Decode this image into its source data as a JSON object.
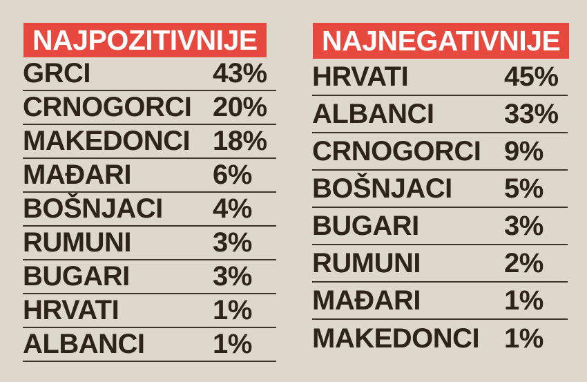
{
  "colors": {
    "background": "#ded7cc",
    "accent_red": "#e8493e",
    "text": "#2d2316",
    "separator_line": "#3c332b",
    "header_text": "#ffffff"
  },
  "columns": [
    {
      "header": "NAJPOZITIVNIJE",
      "rows": [
        {
          "label": "GRCI",
          "value": "43%"
        },
        {
          "label": "CRNOGORCI",
          "value": "20%"
        },
        {
          "label": "MAKEDONCI",
          "value": "18%"
        },
        {
          "label": "MAĐARI",
          "value": "6%"
        },
        {
          "label": "BOŠNJACI",
          "value": "4%"
        },
        {
          "label": "RUMUNI",
          "value": "3%"
        },
        {
          "label": "BUGARI",
          "value": "3%"
        },
        {
          "label": "HRVATI",
          "value": "1%"
        },
        {
          "label": "ALBANCI",
          "value": "1%"
        }
      ]
    },
    {
      "header": "NAJNEGATIVNIJE",
      "rows": [
        {
          "label": "HRVATI",
          "value": "45%"
        },
        {
          "label": "ALBANCI",
          "value": "33%"
        },
        {
          "label": "CRNOGORCI",
          "value": "9%"
        },
        {
          "label": "BOŠNJACI",
          "value": "5%"
        },
        {
          "label": "BUGARI",
          "value": "3%"
        },
        {
          "label": "RUMUNI",
          "value": "2%"
        },
        {
          "label": "MAĐARI",
          "value": "1%"
        },
        {
          "label": "MAKEDONCI",
          "value": "1%"
        }
      ]
    }
  ],
  "chart_data": [
    {
      "type": "table",
      "title": "NAJPOZITIVNIJE",
      "categories": [
        "GRCI",
        "CRNOGORCI",
        "MAKEDONCI",
        "MAĐARI",
        "BOŠNJACI",
        "RUMUNI",
        "BUGARI",
        "HRVATI",
        "ALBANCI"
      ],
      "values": [
        43,
        20,
        18,
        6,
        4,
        3,
        3,
        1,
        1
      ],
      "unit": "%"
    },
    {
      "type": "table",
      "title": "NAJNEGATIVNIJE",
      "categories": [
        "HRVATI",
        "ALBANCI",
        "CRNOGORCI",
        "BOŠNJACI",
        "BUGARI",
        "RUMUNI",
        "MAĐARI",
        "MAKEDONCI"
      ],
      "values": [
        45,
        33,
        9,
        5,
        3,
        2,
        1,
        1
      ],
      "unit": "%"
    }
  ]
}
